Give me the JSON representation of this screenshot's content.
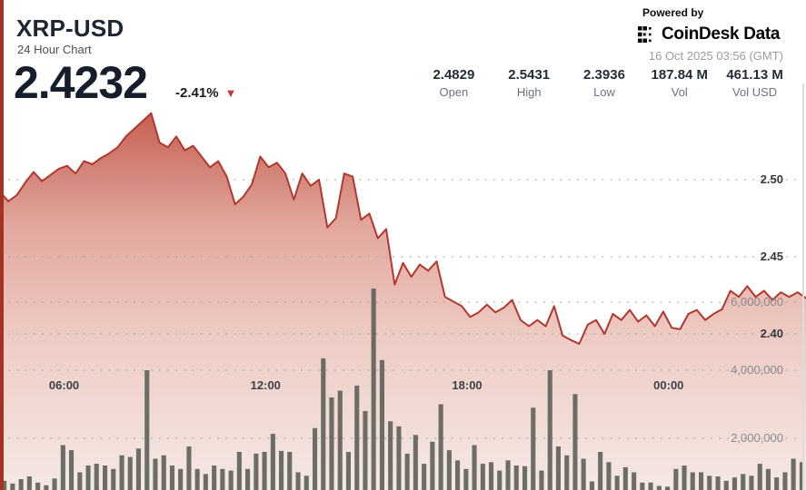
{
  "header": {
    "symbol": "XRP-USD",
    "subtitle": "24 Hour Chart",
    "price": "2.4232",
    "change_percent": "-2.41%",
    "change_direction": "down",
    "down_triangle": "▼",
    "powered_by": "Powered by",
    "brand": "CoinDesk Data",
    "timestamp": "16 Oct 2025 03:56 (GMT)"
  },
  "stats": [
    {
      "value": "2.4829",
      "label": "Open"
    },
    {
      "value": "2.5431",
      "label": "High"
    },
    {
      "value": "2.3936",
      "label": "Low"
    },
    {
      "value": "187.84 M",
      "label": "Vol"
    },
    {
      "value": "461.13 M",
      "label": "Vol USD"
    }
  ],
  "colors": {
    "accent_red": "#a53125",
    "line_red": "#b2372c",
    "fill_top": "#c45a4c",
    "fill_mid": "#e2a89e",
    "fill_low": "#eecdc6",
    "fill_bottom": "#f5e8e4",
    "volume_bar": "#5d6056",
    "gridline": "#a39d99"
  },
  "chart_data": {
    "type": "area",
    "title": "XRP-USD 24 Hour Chart",
    "last_price": 2.4232,
    "open": 2.4829,
    "high": 2.5431,
    "low": 2.3936,
    "volume": "187.84 M",
    "volume_usd": "461.13 M",
    "interval_minutes": 15,
    "x_axis": {
      "window_hours": 24,
      "start_time": "04:00",
      "labels": [
        {
          "text": "06:00",
          "index": 8
        },
        {
          "text": "12:00",
          "index": 32
        },
        {
          "text": "18:00",
          "index": 56
        },
        {
          "text": "00:00",
          "index": 80
        }
      ]
    },
    "price_axis": {
      "side": "right",
      "ticks": [
        {
          "label": "2.50",
          "value": 2.5
        },
        {
          "label": "2.45",
          "value": 2.45
        },
        {
          "label": "2.40",
          "value": 2.4
        }
      ]
    },
    "volume_axis": {
      "side": "right",
      "ticks": [
        {
          "label": "6,000,000",
          "value_millions": 6
        },
        {
          "label": "4,000,000",
          "value_millions": 4
        },
        {
          "label": "2,000,000",
          "value_millions": 2
        }
      ]
    },
    "series": [
      {
        "name": "price",
        "type": "line",
        "values": [
          2.492,
          2.486,
          2.49,
          2.498,
          2.505,
          2.499,
          2.503,
          2.507,
          2.509,
          2.504,
          2.512,
          2.51,
          2.514,
          2.517,
          2.521,
          2.528,
          2.533,
          2.538,
          2.5431,
          2.524,
          2.521,
          2.528,
          2.519,
          2.522,
          2.515,
          2.508,
          2.512,
          2.502,
          2.484,
          2.489,
          2.497,
          2.515,
          2.508,
          2.511,
          2.504,
          2.487,
          2.504,
          2.496,
          2.5,
          2.469,
          2.475,
          2.504,
          2.502,
          2.474,
          2.478,
          2.462,
          2.468,
          2.432,
          2.446,
          2.437,
          2.445,
          2.441,
          2.447,
          2.424,
          2.421,
          2.418,
          2.411,
          2.414,
          2.419,
          2.414,
          2.417,
          2.422,
          2.409,
          2.405,
          2.409,
          2.405,
          2.418,
          2.399,
          2.396,
          2.3936,
          2.406,
          2.409,
          2.4,
          2.413,
          2.409,
          2.4155,
          2.408,
          2.412,
          2.405,
          2.4145,
          2.404,
          2.403,
          2.413,
          2.4155,
          2.409,
          2.413,
          2.416,
          2.428,
          2.424,
          2.431,
          2.424,
          2.428,
          2.422,
          2.427,
          2.424,
          2.427,
          2.4232
        ]
      },
      {
        "name": "volume",
        "type": "bar",
        "unit": "millions",
        "values": [
          0.75,
          0.67,
          0.8,
          0.88,
          0.7,
          0.62,
          0.82,
          1.8,
          1.65,
          1.0,
          1.2,
          1.25,
          1.2,
          1.1,
          1.5,
          1.45,
          1.7,
          4.0,
          1.4,
          1.5,
          1.2,
          1.1,
          1.76,
          1.1,
          0.95,
          1.2,
          1.1,
          1.05,
          1.6,
          1.1,
          1.55,
          1.6,
          2.13,
          1.63,
          1.6,
          1.0,
          0.9,
          2.3,
          4.35,
          3.2,
          3.4,
          1.6,
          3.55,
          2.8,
          6.4,
          4.3,
          2.5,
          2.35,
          1.55,
          2.1,
          1.25,
          1.9,
          3.0,
          1.65,
          1.35,
          1.1,
          1.8,
          1.25,
          1.3,
          1.05,
          1.35,
          1.2,
          1.18,
          2.9,
          1.05,
          4.0,
          1.76,
          1.5,
          3.3,
          1.4,
          0.73,
          1.6,
          1.3,
          0.9,
          1.15,
          1.0,
          0.7,
          0.7,
          0.6,
          0.58,
          1.1,
          1.2,
          1.0,
          1.0,
          0.9,
          0.88,
          0.75,
          0.85,
          0.95,
          0.9,
          1.25,
          1.1,
          0.85,
          1.0,
          1.4,
          1.3
        ]
      }
    ]
  }
}
